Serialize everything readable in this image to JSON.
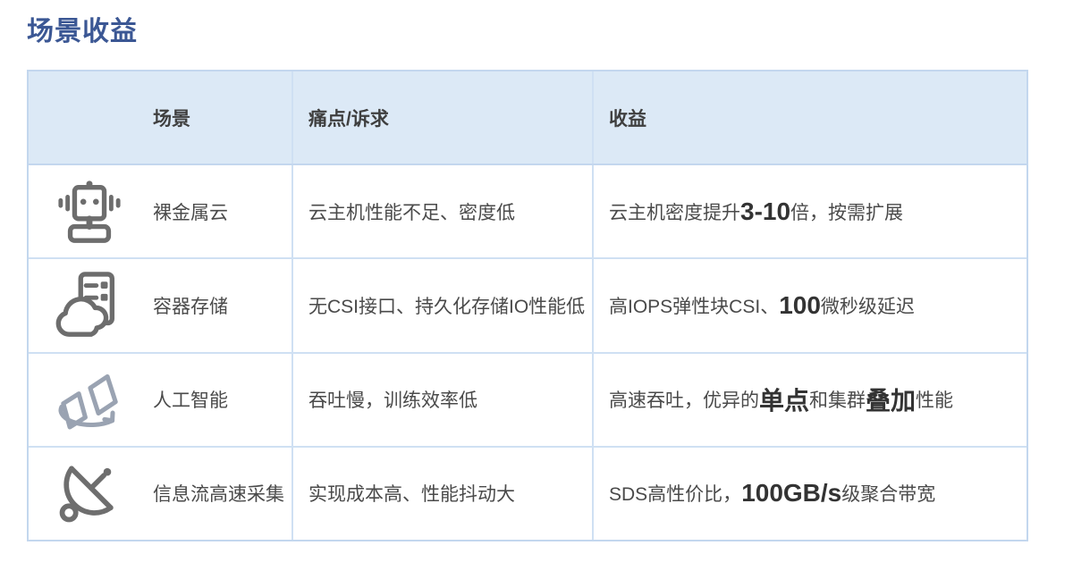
{
  "page_title": "场景收益",
  "colors": {
    "title_blue": "#3b5794",
    "header_bg": "#dce9f6",
    "border_blue": "#c3d7ee",
    "body_text": "#4a4a4a",
    "bold_text": "#333333",
    "icon_gray": "#6d6d6d",
    "icon_bluegray": "#9aa3b2"
  },
  "table": {
    "headers": {
      "scene": "场景",
      "pain": "痛点/诉求",
      "benefit": "收益"
    },
    "rows": [
      {
        "icon": "robot-icon",
        "scene": "裸金属云",
        "pain": "云主机性能不足、密度低",
        "benefit": [
          {
            "t": "云主机密度提升",
            "b": false
          },
          {
            "t": "3-10",
            "b": true
          },
          {
            "t": "倍，按需扩展",
            "b": false
          }
        ]
      },
      {
        "icon": "cloud-server-icon",
        "scene": "容器存储",
        "pain": "无CSI接口、持久化存储IO性能低",
        "benefit": [
          {
            "t": "高IOPS弹性块CSI、",
            "b": false
          },
          {
            "t": "100",
            "b": true
          },
          {
            "t": "微秒级延迟",
            "b": false
          }
        ]
      },
      {
        "icon": "ai-sync-icon",
        "scene": "人工智能",
        "pain": "吞吐慢，训练效率低",
        "benefit": [
          {
            "t": "高速吞吐，优异的",
            "b": false
          },
          {
            "t": "单点",
            "b": true
          },
          {
            "t": "和集群",
            "b": false
          },
          {
            "t": "叠加",
            "b": true
          },
          {
            "t": "性能",
            "b": false
          }
        ]
      },
      {
        "icon": "satellite-dish-icon",
        "scene": "信息流高速采集",
        "pain": "实现成本高、性能抖动大",
        "benefit": [
          {
            "t": "SDS高性价比，",
            "b": false
          },
          {
            "t": "100GB/s",
            "b": true
          },
          {
            "t": "级聚合带宽",
            "b": false
          }
        ]
      }
    ]
  }
}
